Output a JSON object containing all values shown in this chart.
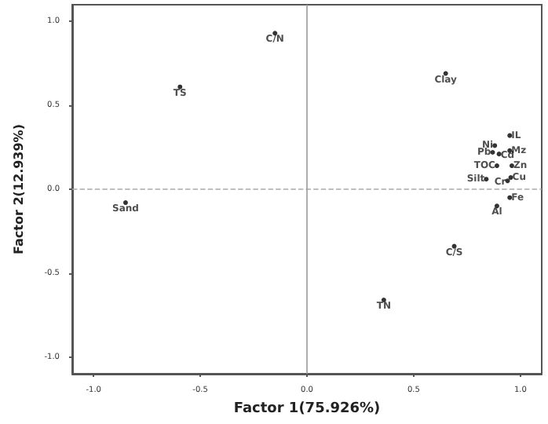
{
  "chart_data": {
    "type": "scatter",
    "xlabel": "Factor 1(75.926%)",
    "ylabel": "Factor 2(12.939%)",
    "x": [
      -0.15,
      -0.595,
      -0.85,
      0.65,
      0.95,
      0.88,
      0.87,
      0.9,
      0.95,
      0.89,
      0.96,
      0.84,
      0.94,
      0.955,
      0.95,
      0.89,
      0.69,
      0.36
    ],
    "series": [
      {
        "color": "#000000",
        "values": [
          0.93,
          0.61,
          -0.08,
          0.69,
          0.32,
          0.26,
          0.22,
          0.21,
          0.23,
          0.14,
          0.14,
          0.06,
          0.05,
          0.07,
          -0.05,
          -0.1,
          -0.34,
          -0.66
        ]
      }
    ],
    "annotations": [
      {
        "text": "C/N",
        "x": -0.15,
        "y": 0.93
      },
      {
        "text": "TS",
        "x": -0.595,
        "y": 0.61
      },
      {
        "text": "Sand",
        "x": -0.85,
        "y": -0.08
      },
      {
        "text": "Clay",
        "x": 0.65,
        "y": 0.69
      },
      {
        "text": "IL",
        "x": 0.95,
        "y": 0.32
      },
      {
        "text": "Ni",
        "x": 0.88,
        "y": 0.26
      },
      {
        "text": "Pb",
        "x": 0.87,
        "y": 0.22
      },
      {
        "text": "Cd",
        "x": 0.9,
        "y": 0.21
      },
      {
        "text": "Mz",
        "x": 0.95,
        "y": 0.23
      },
      {
        "text": "TOC",
        "x": 0.89,
        "y": 0.14
      },
      {
        "text": "Zn",
        "x": 0.96,
        "y": 0.14
      },
      {
        "text": "Silt",
        "x": 0.84,
        "y": 0.06
      },
      {
        "text": "Cr",
        "x": 0.94,
        "y": 0.05
      },
      {
        "text": "Cu",
        "x": 0.955,
        "y": 0.07
      },
      {
        "text": "Fe",
        "x": 0.95,
        "y": -0.05
      },
      {
        "text": "Al",
        "x": 0.89,
        "y": -0.1
      },
      {
        "text": "C/S",
        "x": 0.69,
        "y": -0.34
      },
      {
        "text": "TN",
        "x": 0.36,
        "y": -0.66
      }
    ],
    "xlim": [
      -1.1,
      1.1
    ],
    "ylim": [
      -1.1,
      1.1
    ],
    "xticks": [
      {
        "value": -1,
        "label": "-1.0"
      },
      {
        "value": -0.5,
        "label": "-0.5"
      },
      {
        "value": 0,
        "label": "0.0"
      },
      {
        "value": 0.5,
        "label": "0.5"
      },
      {
        "value": 1,
        "label": "1.0"
      }
    ],
    "yticks": [
      {
        "value": -1,
        "label": "-1.0"
      },
      {
        "value": -0.5,
        "label": "-0.5"
      },
      {
        "value": 0,
        "label": "0.0"
      },
      {
        "value": 0.5,
        "label": "0.5"
      },
      {
        "value": 1,
        "label": "1.0"
      }
    ],
    "ref_lines": [
      {
        "axis": "y",
        "value": 0,
        "color": "#aaaaaa",
        "line_style": "dashed"
      },
      {
        "axis": "x",
        "value": 0,
        "color": "#999999",
        "line_style": "solid"
      }
    ],
    "grid": false,
    "marker": "circle"
  }
}
